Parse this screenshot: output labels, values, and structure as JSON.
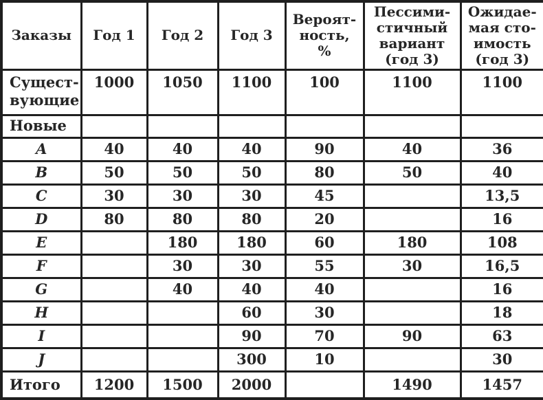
{
  "colors": {
    "text": "#262626",
    "border": "#1f1f1f",
    "background": "#ffffff"
  },
  "table": {
    "columns": [
      "Заказы",
      "Год 1",
      "Год 2",
      "Год 3",
      "Вероят-\nность,\n%",
      "Пессими-\nстичный\nвариант\n(год 3)",
      "Ожидае-\nмая сто-\nимость\n(год 3)"
    ],
    "rows": [
      {
        "label": "Сущест-\nвующие",
        "label_align": "left",
        "tall": true,
        "cells": [
          "1000",
          "1050",
          "1100",
          "100",
          "1100",
          "1100"
        ]
      },
      {
        "label": "Новые",
        "label_align": "left",
        "small": true,
        "cells": [
          "",
          "",
          "",
          "",
          "",
          ""
        ]
      },
      {
        "label": "A",
        "italic": true,
        "cells": [
          "40",
          "40",
          "40",
          "90",
          "40",
          "36"
        ]
      },
      {
        "label": "B",
        "italic": true,
        "cells": [
          "50",
          "50",
          "50",
          "80",
          "50",
          "40"
        ]
      },
      {
        "label": "C",
        "italic": true,
        "cells": [
          "30",
          "30",
          "30",
          "45",
          "",
          "13,5"
        ]
      },
      {
        "label": "D",
        "italic": true,
        "cells": [
          "80",
          "80",
          "80",
          "20",
          "",
          "16"
        ]
      },
      {
        "label": "E",
        "italic": true,
        "cells": [
          "",
          "180",
          "180",
          "60",
          "180",
          "108"
        ]
      },
      {
        "label": "F",
        "italic": true,
        "cells": [
          "",
          "30",
          "30",
          "55",
          "30",
          "16,5"
        ]
      },
      {
        "label": "G",
        "italic": true,
        "cells": [
          "",
          "40",
          "40",
          "40",
          "",
          "16"
        ]
      },
      {
        "label": "H",
        "italic": true,
        "cells": [
          "",
          "",
          "60",
          "30",
          "",
          "18"
        ]
      },
      {
        "label": "I",
        "italic": true,
        "cells": [
          "",
          "",
          "90",
          "70",
          "90",
          "63"
        ]
      },
      {
        "label": "J",
        "italic": true,
        "cells": [
          "",
          "",
          "300",
          "10",
          "",
          "30"
        ]
      },
      {
        "label": "Итого",
        "label_align": "left",
        "total": true,
        "cells": [
          "1200",
          "1500",
          "2000",
          "",
          "1490",
          "1457"
        ]
      }
    ]
  }
}
